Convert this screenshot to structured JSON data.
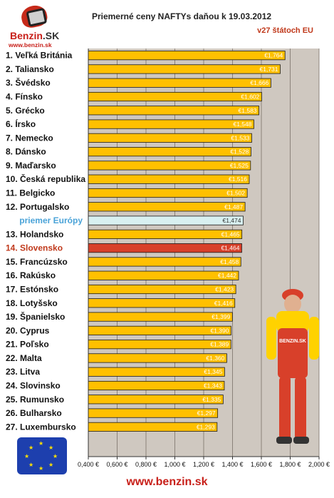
{
  "header": {
    "title": "Priemerné ceny NAFTYs daňou k 19.03.2012",
    "subtitle": "v27 štátoch EU"
  },
  "logo": {
    "brand": "Benzin",
    "brand_suffix": ".SK",
    "url": "www.benzin.sk"
  },
  "footer": {
    "url": "www.benzin.sk"
  },
  "colors": {
    "bar": "#FFC000",
    "bar_highlight": "#D8402A",
    "bar_average": "#D8F0F0",
    "plot_bg": "#CFC8C0",
    "label_highlight": "#C0391B",
    "label_average": "#4AA3D8"
  },
  "chart_data": {
    "type": "bar",
    "orientation": "horizontal",
    "title": "Priemerné ceny NAFTYs daňou k 19.03.2012",
    "subtitle": "v27 štátoch EU",
    "xlim": [
      0.4,
      2.0
    ],
    "grid": true,
    "x_ticks": [
      "0,400 €",
      "0,600 €",
      "0,800 €",
      "1,000 €",
      "1,200 €",
      "1,400 €",
      "1,600 €",
      "1,800 €",
      "2,000 €"
    ],
    "x_tick_values": [
      0.4,
      0.6,
      0.8,
      1.0,
      1.2,
      1.4,
      1.6,
      1.8,
      2.0
    ],
    "categories": [
      "1. Veľká Británia",
      "2. Taliansko",
      "3. Švédsko",
      "4. Fínsko",
      "5. Grécko",
      "6. Írsko",
      "7. Nemecko",
      "8. Dánsko",
      "9. Maďarsko",
      "10. Česká republika",
      "11. Belgicko",
      "12. Portugalsko",
      "priemer Európy",
      "13. Holandsko",
      "14. Slovensko",
      "15. Francúzsko",
      "16. Rakúsko",
      "17. Estónsko",
      "18. Lotyšsko",
      "19. Španielsko",
      "20. Cyprus",
      "21. Poľsko",
      "22. Malta",
      "23. Litva",
      "24. Slovinsko",
      "25. Rumunsko",
      "26. Bulharsko",
      "27. Luxembursko"
    ],
    "values": [
      1.764,
      1.731,
      1.666,
      1.602,
      1.583,
      1.548,
      1.533,
      1.528,
      1.525,
      1.516,
      1.502,
      1.487,
      1.474,
      1.465,
      1.464,
      1.458,
      1.442,
      1.423,
      1.416,
      1.399,
      1.39,
      1.389,
      1.36,
      1.345,
      1.343,
      1.335,
      1.297,
      1.293
    ],
    "value_labels": [
      "€1,764",
      "€1,731",
      "€1,666",
      "€1,602",
      "€1,583",
      "€1,548",
      "€1,533",
      "€1,528",
      "€1,525",
      "€1,516",
      "€1,502",
      "€1,487",
      "€1,474",
      "€1,465",
      "€1,464",
      "€1,458",
      "€1,442",
      "€1,423",
      "€1,416",
      "€1,399",
      "€1,390",
      "€1,389",
      "€1,360",
      "€1,345",
      "€1,343",
      "€1,335",
      "€1,297",
      "€1,293"
    ],
    "highlight_category": "14. Slovensko",
    "average_category": "priemer Európy"
  }
}
